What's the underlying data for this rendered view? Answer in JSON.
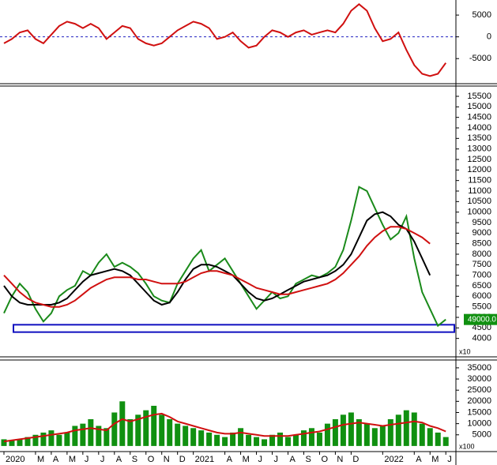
{
  "chart_data": [
    {
      "type": "line",
      "x": [
        0,
        0.5,
        1,
        1.5,
        2,
        2.5,
        3,
        3.5,
        4,
        4.5,
        5,
        5.5,
        6,
        6.5,
        7,
        7.5,
        8,
        8.5,
        9,
        9.5,
        10,
        10.5,
        11,
        11.5,
        12,
        12.5,
        13,
        13.5,
        14,
        14.5,
        15,
        15.5,
        16,
        16.5,
        17,
        17.5,
        18,
        18.5,
        19,
        19.5,
        20,
        20.5,
        21,
        21.5,
        22,
        22.5,
        23,
        23.5,
        24,
        24.5,
        25,
        25.5,
        26,
        26.5,
        27,
        27.5,
        28
      ],
      "xlim": [
        -0.25,
        28.64
      ],
      "ylim": [
        -10400,
        8100
      ],
      "yticks": [
        -5000,
        0,
        5000
      ],
      "hline": 0,
      "series": [
        {
          "color": "#d01010",
          "values": [
            -1500,
            -500,
            1000,
            1500,
            -500,
            -1500,
            500,
            2500,
            3500,
            3000,
            2000,
            3000,
            2000,
            -500,
            1000,
            2500,
            2000,
            -500,
            -1500,
            -2000,
            -1500,
            0,
            1500,
            2500,
            3500,
            3000,
            2000,
            -500,
            0,
            1000,
            -1000,
            -2500,
            -2000,
            0,
            1500,
            1000,
            0,
            1000,
            1500,
            500,
            1000,
            1500,
            1000,
            3000,
            6000,
            7500,
            6000,
            2000,
            -1000,
            -500,
            1000,
            -3000,
            -6500,
            -8500,
            -9000,
            -8500,
            -6000
          ]
        }
      ]
    },
    {
      "type": "line",
      "x": [
        0,
        0.5,
        1,
        1.5,
        2,
        2.5,
        3,
        3.5,
        4,
        4.5,
        5,
        5.5,
        6,
        6.5,
        7,
        7.5,
        8,
        8.5,
        9,
        9.5,
        10,
        10.5,
        11,
        11.5,
        12,
        12.5,
        13,
        13.5,
        14,
        14.5,
        15,
        15.5,
        16,
        16.5,
        17,
        17.5,
        18,
        18.5,
        19,
        19.5,
        20,
        20.5,
        21,
        21.5,
        22,
        22.5,
        23,
        23.5,
        24,
        24.5,
        25,
        25.5,
        26,
        26.5,
        27,
        27.5,
        28
      ],
      "xlim": [
        -0.25,
        28.64
      ],
      "ylim": [
        3200,
        15950
      ],
      "yticks": [
        4000,
        4500,
        5000,
        5500,
        6000,
        6500,
        7000,
        7500,
        8000,
        8500,
        9000,
        9500,
        10000,
        10500,
        11000,
        11500,
        12000,
        12500,
        13000,
        13500,
        14000,
        14500,
        15000,
        15500
      ],
      "unit_label": "x10",
      "support_zone": [
        4300,
        4650
      ],
      "last_price": {
        "value": 4900,
        "label": "49000.0"
      },
      "series": [
        {
          "color": "#1a8a1a",
          "values": [
            5200,
            6000,
            6600,
            6200,
            5400,
            4800,
            5200,
            6000,
            6300,
            6500,
            7200,
            7000,
            7600,
            8000,
            7400,
            7600,
            7400,
            7100,
            6600,
            6000,
            5800,
            5700,
            6600,
            7200,
            7800,
            8200,
            7200,
            7500,
            7800,
            7200,
            6600,
            6000,
            5400,
            5800,
            6200,
            5900,
            6000,
            6600,
            6800,
            7000,
            6900,
            7100,
            7400,
            8200,
            9600,
            11200,
            11000,
            10200,
            9400,
            8700,
            9000,
            9800,
            7800,
            6200,
            5400,
            4600,
            4900
          ]
        },
        {
          "color": "#000000",
          "values": [
            6500,
            6000,
            5700,
            5600,
            5600,
            5600,
            5600,
            5700,
            5900,
            6300,
            6700,
            7000,
            7100,
            7200,
            7300,
            7200,
            7000,
            6600,
            6200,
            5800,
            5600,
            5700,
            6200,
            6800,
            7300,
            7500,
            7500,
            7400,
            7200,
            7000,
            6600,
            6200,
            5900,
            5800,
            5900,
            6100,
            6300,
            6500,
            6700,
            6800,
            6900,
            7000,
            7200,
            7500,
            8000,
            8800,
            9600,
            9900,
            10000,
            9800,
            9400,
            9200,
            8600,
            7800,
            7000,
            null,
            null
          ]
        },
        {
          "color": "#d01010",
          "values": [
            7000,
            6600,
            6200,
            5900,
            5700,
            5600,
            5500,
            5500,
            5600,
            5800,
            6100,
            6400,
            6600,
            6800,
            6900,
            6900,
            6900,
            6800,
            6800,
            6700,
            6600,
            6600,
            6600,
            6700,
            6900,
            7100,
            7200,
            7200,
            7100,
            7000,
            6800,
            6600,
            6400,
            6300,
            6200,
            6100,
            6100,
            6200,
            6300,
            6400,
            6500,
            6600,
            6800,
            7100,
            7500,
            7900,
            8400,
            8800,
            9100,
            9300,
            9300,
            9200,
            9000,
            8800,
            8500,
            null,
            null
          ]
        }
      ]
    },
    {
      "type": "bar",
      "x": [
        0,
        0.5,
        1,
        1.5,
        2,
        2.5,
        3,
        3.5,
        4,
        4.5,
        5,
        5.5,
        6,
        6.5,
        7,
        7.5,
        8,
        8.5,
        9,
        9.5,
        10,
        10.5,
        11,
        11.5,
        12,
        12.5,
        13,
        13.5,
        14,
        14.5,
        15,
        15.5,
        16,
        16.5,
        17,
        17.5,
        18,
        18.5,
        19,
        19.5,
        20,
        20.5,
        21,
        21.5,
        22,
        22.5,
        23,
        23.5,
        24,
        24.5,
        25,
        25.5,
        26,
        26.5,
        27,
        27.5,
        28
      ],
      "xlim": [
        -0.25,
        28.64
      ],
      "ylim": [
        -1800,
        37800
      ],
      "yticks": [
        5000,
        10000,
        15000,
        20000,
        25000,
        30000,
        35000
      ],
      "unit_label": "x100",
      "xticks": [
        {
          "value": 0,
          "label": "2020"
        },
        {
          "value": 2,
          "label": "M"
        },
        {
          "value": 3,
          "label": "A"
        },
        {
          "value": 4,
          "label": "M"
        },
        {
          "value": 5,
          "label": "J"
        },
        {
          "value": 6,
          "label": "J"
        },
        {
          "value": 7,
          "label": "A"
        },
        {
          "value": 8,
          "label": "S"
        },
        {
          "value": 9,
          "label": "O"
        },
        {
          "value": 10,
          "label": "N"
        },
        {
          "value": 11,
          "label": "D"
        },
        {
          "value": 12,
          "label": "2021"
        },
        {
          "value": 14,
          "label": "A"
        },
        {
          "value": 15,
          "label": "M"
        },
        {
          "value": 16,
          "label": "J"
        },
        {
          "value": 17,
          "label": "J"
        },
        {
          "value": 18,
          "label": "A"
        },
        {
          "value": 19,
          "label": "S"
        },
        {
          "value": 20,
          "label": "O"
        },
        {
          "value": 21,
          "label": "N"
        },
        {
          "value": 22,
          "label": "D"
        },
        {
          "value": 24,
          "label": "2022"
        },
        {
          "value": 26,
          "label": "A"
        },
        {
          "value": 27,
          "label": "M"
        },
        {
          "value": 28,
          "label": "J"
        }
      ],
      "series": [
        {
          "type": "bar",
          "color": "#109010",
          "values": [
            3000,
            2500,
            3000,
            4000,
            5000,
            6000,
            7000,
            5000,
            6000,
            9000,
            10000,
            12000,
            9000,
            8000,
            15000,
            20000,
            12000,
            14000,
            16000,
            18000,
            14000,
            12000,
            10000,
            9000,
            8000,
            7000,
            6000,
            5000,
            4000,
            6000,
            8000,
            5000,
            4000,
            3000,
            5000,
            6000,
            4000,
            5000,
            7000,
            8000,
            6000,
            10000,
            12000,
            14000,
            15000,
            12000,
            10000,
            8000,
            9000,
            12000,
            14000,
            16000,
            15000,
            10000,
            8000,
            6000,
            4000
          ]
        },
        {
          "type": "line",
          "color": "#d01010",
          "values": [
            2000,
            2500,
            3000,
            3500,
            4000,
            4500,
            5000,
            5500,
            6000,
            7000,
            7500,
            8000,
            7500,
            7000,
            10000,
            12000,
            11000,
            12000,
            13000,
            14000,
            14500,
            13000,
            11000,
            10000,
            9000,
            8000,
            7000,
            6000,
            5500,
            5500,
            6000,
            5500,
            5000,
            4500,
            4500,
            4500,
            4500,
            5000,
            5500,
            6000,
            6500,
            7500,
            8500,
            9500,
            10000,
            10500,
            10000,
            9500,
            9000,
            9500,
            10000,
            10500,
            11000,
            10500,
            9000,
            8000,
            6500
          ]
        }
      ]
    }
  ]
}
